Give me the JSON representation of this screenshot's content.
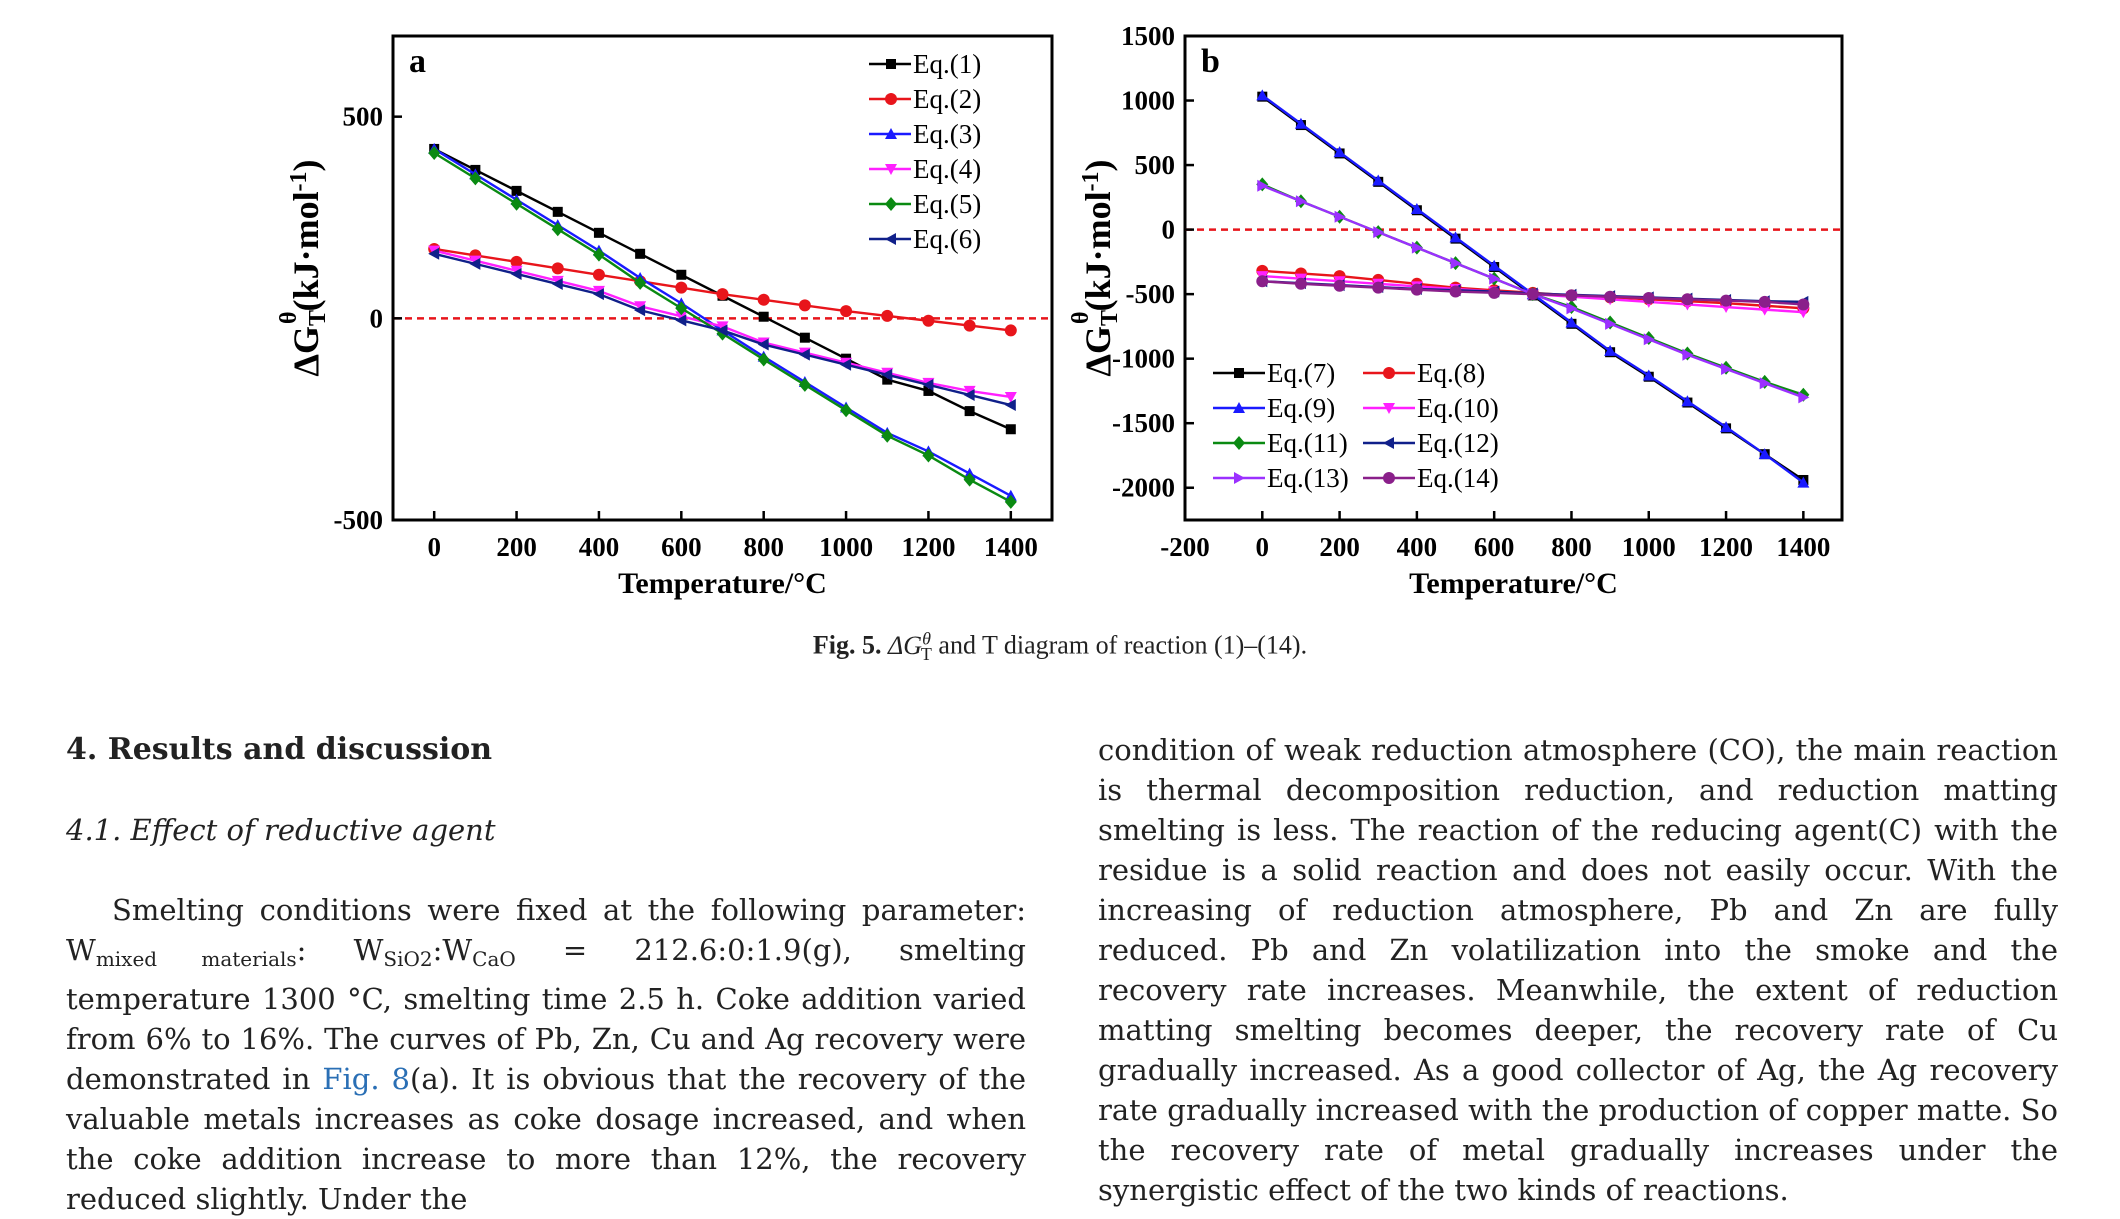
{
  "figure": {
    "caption_label": "Fig. 5.",
    "caption_text": "and T diagram of reaction (1)–(14).",
    "caption_symbol": "ΔG",
    "caption_sup": "θ",
    "caption_sub": "T"
  },
  "chart_data": [
    {
      "type": "line",
      "panel_label": "a",
      "xlabel": "Temperature/°C",
      "ylabel": "ΔG",
      "ylabel_sup": "θ",
      "ylabel_sub": "T",
      "ylabel_unit": "(kJ·mol",
      "ylabel_unit_sup": "-1",
      "ylabel_close": ")",
      "xlim": [
        -100,
        1500
      ],
      "ylim": [
        -500,
        700
      ],
      "xticks": [
        "0",
        "200",
        "400",
        "600",
        "800",
        "1000",
        "1200",
        "1400"
      ],
      "yticks": [
        "-500",
        "0",
        "500"
      ],
      "ytick_values": [
        -500,
        0,
        500
      ],
      "xtick_values": [
        0,
        200,
        400,
        600,
        800,
        1000,
        1200,
        1400
      ],
      "zero_line_color": "#e8151b",
      "legend_position": "top-right",
      "x": [
        0,
        100,
        200,
        300,
        400,
        500,
        600,
        700,
        800,
        900,
        1000,
        1100,
        1200,
        1300,
        1400
      ],
      "series": [
        {
          "name": "Eq.(1)",
          "color": "#000000",
          "marker": "square",
          "values": [
            420,
            368,
            316,
            264,
            212,
            160,
            108,
            56,
            4,
            -48,
            -100,
            -152,
            -180,
            -230,
            -275
          ]
        },
        {
          "name": "Eq.(2)",
          "color": "#e8151b",
          "marker": "circle",
          "values": [
            172,
            156,
            140,
            124,
            108,
            92,
            76,
            60,
            46,
            32,
            18,
            6,
            -6,
            -18,
            -30
          ]
        },
        {
          "name": "Eq.(3)",
          "color": "#1a1aff",
          "marker": "triangle-up",
          "values": [
            420,
            357,
            294,
            231,
            168,
            100,
            37,
            -30,
            -95,
            -158,
            -221,
            -284,
            -330,
            -385,
            -440
          ]
        },
        {
          "name": "Eq.(4)",
          "color": "#ff20ff",
          "marker": "triangle-down",
          "values": [
            168,
            143,
            118,
            93,
            68,
            30,
            5,
            -20,
            -60,
            -85,
            -110,
            -135,
            -160,
            -180,
            -195
          ]
        },
        {
          "name": "Eq.(5)",
          "color": "#0a8a12",
          "marker": "diamond",
          "values": [
            410,
            347,
            284,
            221,
            158,
            88,
            25,
            -38,
            -102,
            -165,
            -228,
            -291,
            -340,
            -400,
            -455
          ]
        },
        {
          "name": "Eq.(6)",
          "color": "#10208a",
          "marker": "triangle-left",
          "values": [
            160,
            135,
            110,
            85,
            60,
            20,
            -5,
            -30,
            -65,
            -90,
            -115,
            -140,
            -165,
            -190,
            -215
          ]
        }
      ]
    },
    {
      "type": "line",
      "panel_label": "b",
      "xlabel": "Temperature/°C",
      "ylabel": "ΔG",
      "ylabel_sup": "θ",
      "ylabel_sub": "T",
      "ylabel_unit": "(kJ·mol",
      "ylabel_unit_sup": "-1",
      "ylabel_close": ")",
      "xlim": [
        -200,
        1500
      ],
      "ylim": [
        -2250,
        1500
      ],
      "xticks": [
        "-200",
        "0",
        "200",
        "400",
        "600",
        "800",
        "1000",
        "1200",
        "1400"
      ],
      "xtick_values": [
        -200,
        0,
        200,
        400,
        600,
        800,
        1000,
        1200,
        1400
      ],
      "yticks": [
        "1500",
        "1000",
        "500",
        "0",
        "-500",
        "-1000",
        "-1500",
        "-2000"
      ],
      "ytick_values": [
        1500,
        1000,
        500,
        0,
        -500,
        -1000,
        -1500,
        -2000
      ],
      "zero_line_color": "#e8151b",
      "legend_position": "bottom-left",
      "x": [
        0,
        100,
        200,
        300,
        400,
        500,
        600,
        700,
        800,
        900,
        1000,
        1100,
        1200,
        1300,
        1400
      ],
      "series": [
        {
          "name": "Eq.(7)",
          "color": "#000000",
          "marker": "square",
          "values": [
            1030,
            810,
            590,
            370,
            150,
            -70,
            -290,
            -510,
            -730,
            -950,
            -1140,
            -1340,
            -1540,
            -1740,
            -1940
          ]
        },
        {
          "name": "Eq.(8)",
          "color": "#e8151b",
          "marker": "circle",
          "values": [
            -320,
            -340,
            -360,
            -390,
            -420,
            -450,
            -470,
            -490,
            -510,
            -525,
            -540,
            -555,
            -570,
            -590,
            -610
          ]
        },
        {
          "name": "Eq.(9)",
          "color": "#1a1aff",
          "marker": "triangle-up",
          "values": [
            1040,
            820,
            600,
            380,
            160,
            -60,
            -280,
            -500,
            -720,
            -940,
            -1130,
            -1330,
            -1530,
            -1740,
            -1960
          ]
        },
        {
          "name": "Eq.(10)",
          "color": "#ff20ff",
          "marker": "triangle-down",
          "values": [
            -360,
            -380,
            -400,
            -420,
            -440,
            -460,
            -480,
            -500,
            -520,
            -540,
            -560,
            -580,
            -600,
            -620,
            -640
          ]
        },
        {
          "name": "Eq.(11)",
          "color": "#0a8a12",
          "marker": "diamond",
          "values": [
            350,
            220,
            100,
            -20,
            -140,
            -260,
            -380,
            -500,
            -600,
            -720,
            -840,
            -960,
            -1070,
            -1180,
            -1280
          ]
        },
        {
          "name": "Eq.(12)",
          "color": "#10208a",
          "marker": "triangle-left",
          "values": [
            -400,
            -415,
            -430,
            -445,
            -460,
            -470,
            -480,
            -495,
            -505,
            -515,
            -525,
            -535,
            -545,
            -555,
            -560
          ]
        },
        {
          "name": "Eq.(13)",
          "color": "#9b30ff",
          "marker": "triangle-right",
          "values": [
            340,
            220,
            100,
            -20,
            -140,
            -260,
            -380,
            -500,
            -610,
            -730,
            -850,
            -970,
            -1080,
            -1190,
            -1300
          ]
        },
        {
          "name": "Eq.(14)",
          "color": "#8a1f8a",
          "marker": "circle",
          "values": [
            -400,
            -420,
            -435,
            -450,
            -465,
            -480,
            -490,
            -500,
            -510,
            -520,
            -530,
            -540,
            -550,
            -560,
            -580
          ]
        }
      ]
    }
  ],
  "section": {
    "heading": "4.  Results and discussion",
    "subheading": "4.1.  Effect of reductive agent",
    "p1_a": "Smelting conditions were fixed at the following parameter: W",
    "p1_sub1": "mixed materials",
    "p1_b": ": W",
    "p1_sub2": "SiO2",
    "p1_c": ":W",
    "p1_sub3": "CaO",
    "p1_d": " = 212.6:0:1.9(g), smelting temperature 1300 °C, smelting time 2.5 h. Coke addition varied from 6% to 16%. The curves of Pb, Zn, Cu and Ag recovery were demonstrated in ",
    "p1_ref": "Fig. 8",
    "p1_e": "(a). It is obvious that the recovery of the valuable metals increases as coke dosage increased, and when the coke addition increase to more than 12%, the recovery reduced slightly. Under the",
    "p2": "condition of weak reduction atmosphere (CO), the main reaction is thermal decomposition reduction, and reduction matting smelting is less. The reaction of the reducing agent(C) with the residue is a solid reaction and does not easily occur. With the increasing of reduction atmosphere, Pb and Zn are fully reduced. Pb and Zn volatilization into the smoke and the recovery rate increases. Meanwhile, the extent of reduction matting smelting becomes deeper, the recovery rate of Cu gradually increased. As a good collector of Ag, the Ag recovery rate gradually increased with the production of copper matte. So the recovery rate of metal gradually increases under the synergistic effect of the two kinds of reactions."
  }
}
